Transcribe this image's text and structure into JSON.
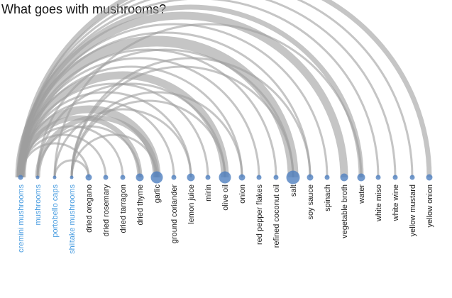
{
  "title": "What goes with mushrooms?",
  "colors": {
    "source_label": "#4a9de0",
    "target_label": "#222222",
    "node_fill": "#4f7fbf",
    "arc": "#9e9e9e"
  },
  "chart_data": {
    "type": "arc",
    "nodes": [
      {
        "name": "cremini mushrooms",
        "group": "mushroom",
        "weight": 1
      },
      {
        "name": "mushrooms",
        "group": "mushroom",
        "weight": 0
      },
      {
        "name": "portobello caps",
        "group": "mushroom",
        "weight": 0
      },
      {
        "name": "shiitake mushrooms",
        "group": "mushroom",
        "weight": 0
      },
      {
        "name": "dried oregano",
        "group": "ingredient",
        "weight": 2
      },
      {
        "name": "dried rosemary",
        "group": "ingredient",
        "weight": 1
      },
      {
        "name": "dried tarragon",
        "group": "ingredient",
        "weight": 1
      },
      {
        "name": "dried thyme",
        "group": "ingredient",
        "weight": 3
      },
      {
        "name": "garlic",
        "group": "ingredient",
        "weight": 6
      },
      {
        "name": "ground coriander",
        "group": "ingredient",
        "weight": 1
      },
      {
        "name": "lemon juice",
        "group": "ingredient",
        "weight": 3
      },
      {
        "name": "mirin",
        "group": "ingredient",
        "weight": 1
      },
      {
        "name": "olive oil",
        "group": "ingredient",
        "weight": 6
      },
      {
        "name": "onion",
        "group": "ingredient",
        "weight": 2
      },
      {
        "name": "red pepper flakes",
        "group": "ingredient",
        "weight": 1
      },
      {
        "name": "refined coconut oil",
        "group": "ingredient",
        "weight": 1
      },
      {
        "name": "salt",
        "group": "ingredient",
        "weight": 7
      },
      {
        "name": "soy sauce",
        "group": "ingredient",
        "weight": 2
      },
      {
        "name": "spinach",
        "group": "ingredient",
        "weight": 1
      },
      {
        "name": "vegetable broth",
        "group": "ingredient",
        "weight": 3
      },
      {
        "name": "water",
        "group": "ingredient",
        "weight": 3
      },
      {
        "name": "white miso",
        "group": "ingredient",
        "weight": 1
      },
      {
        "name": "white wine",
        "group": "ingredient",
        "weight": 1
      },
      {
        "name": "yellow mustard",
        "group": "ingredient",
        "weight": 1
      },
      {
        "name": "yellow onion",
        "group": "ingredient",
        "weight": 2
      }
    ],
    "links": [
      {
        "source": "cremini mushrooms",
        "target": "dried oregano",
        "value": 1
      },
      {
        "source": "cremini mushrooms",
        "target": "dried rosemary",
        "value": 1
      },
      {
        "source": "cremini mushrooms",
        "target": "dried tarragon",
        "value": 1
      },
      {
        "source": "cremini mushrooms",
        "target": "dried thyme",
        "value": 2
      },
      {
        "source": "cremini mushrooms",
        "target": "garlic",
        "value": 3
      },
      {
        "source": "cremini mushrooms",
        "target": "ground coriander",
        "value": 1
      },
      {
        "source": "cremini mushrooms",
        "target": "lemon juice",
        "value": 1
      },
      {
        "source": "cremini mushrooms",
        "target": "mirin",
        "value": 1
      },
      {
        "source": "cremini mushrooms",
        "target": "olive oil",
        "value": 3
      },
      {
        "source": "cremini mushrooms",
        "target": "onion",
        "value": 1
      },
      {
        "source": "cremini mushrooms",
        "target": "red pepper flakes",
        "value": 1
      },
      {
        "source": "cremini mushrooms",
        "target": "refined coconut oil",
        "value": 1
      },
      {
        "source": "cremini mushrooms",
        "target": "salt",
        "value": 4
      },
      {
        "source": "cremini mushrooms",
        "target": "soy sauce",
        "value": 1
      },
      {
        "source": "cremini mushrooms",
        "target": "spinach",
        "value": 1
      },
      {
        "source": "cremini mushrooms",
        "target": "vegetable broth",
        "value": 3
      },
      {
        "source": "cremini mushrooms",
        "target": "water",
        "value": 2
      },
      {
        "source": "cremini mushrooms",
        "target": "white miso",
        "value": 1
      },
      {
        "source": "cremini mushrooms",
        "target": "white wine",
        "value": 1
      },
      {
        "source": "cremini mushrooms",
        "target": "yellow mustard",
        "value": 1
      },
      {
        "source": "cremini mushrooms",
        "target": "yellow onion",
        "value": 2
      },
      {
        "source": "mushrooms",
        "target": "garlic",
        "value": 2
      },
      {
        "source": "mushrooms",
        "target": "olive oil",
        "value": 1
      },
      {
        "source": "mushrooms",
        "target": "salt",
        "value": 1
      },
      {
        "source": "mushrooms",
        "target": "dried thyme",
        "value": 1
      },
      {
        "source": "portobello caps",
        "target": "lemon juice",
        "value": 1
      },
      {
        "source": "portobello caps",
        "target": "water",
        "value": 1
      },
      {
        "source": "portobello caps",
        "target": "dried oregano",
        "value": 1
      },
      {
        "source": "shiitake mushrooms",
        "target": "salt",
        "value": 1
      },
      {
        "source": "shiitake mushrooms",
        "target": "soy sauce",
        "value": 1
      },
      {
        "source": "shiitake mushrooms",
        "target": "olive oil",
        "value": 1
      },
      {
        "source": "shiitake mushrooms",
        "target": "garlic",
        "value": 1
      },
      {
        "source": "shiitake mushrooms",
        "target": "onion",
        "value": 1
      }
    ]
  }
}
